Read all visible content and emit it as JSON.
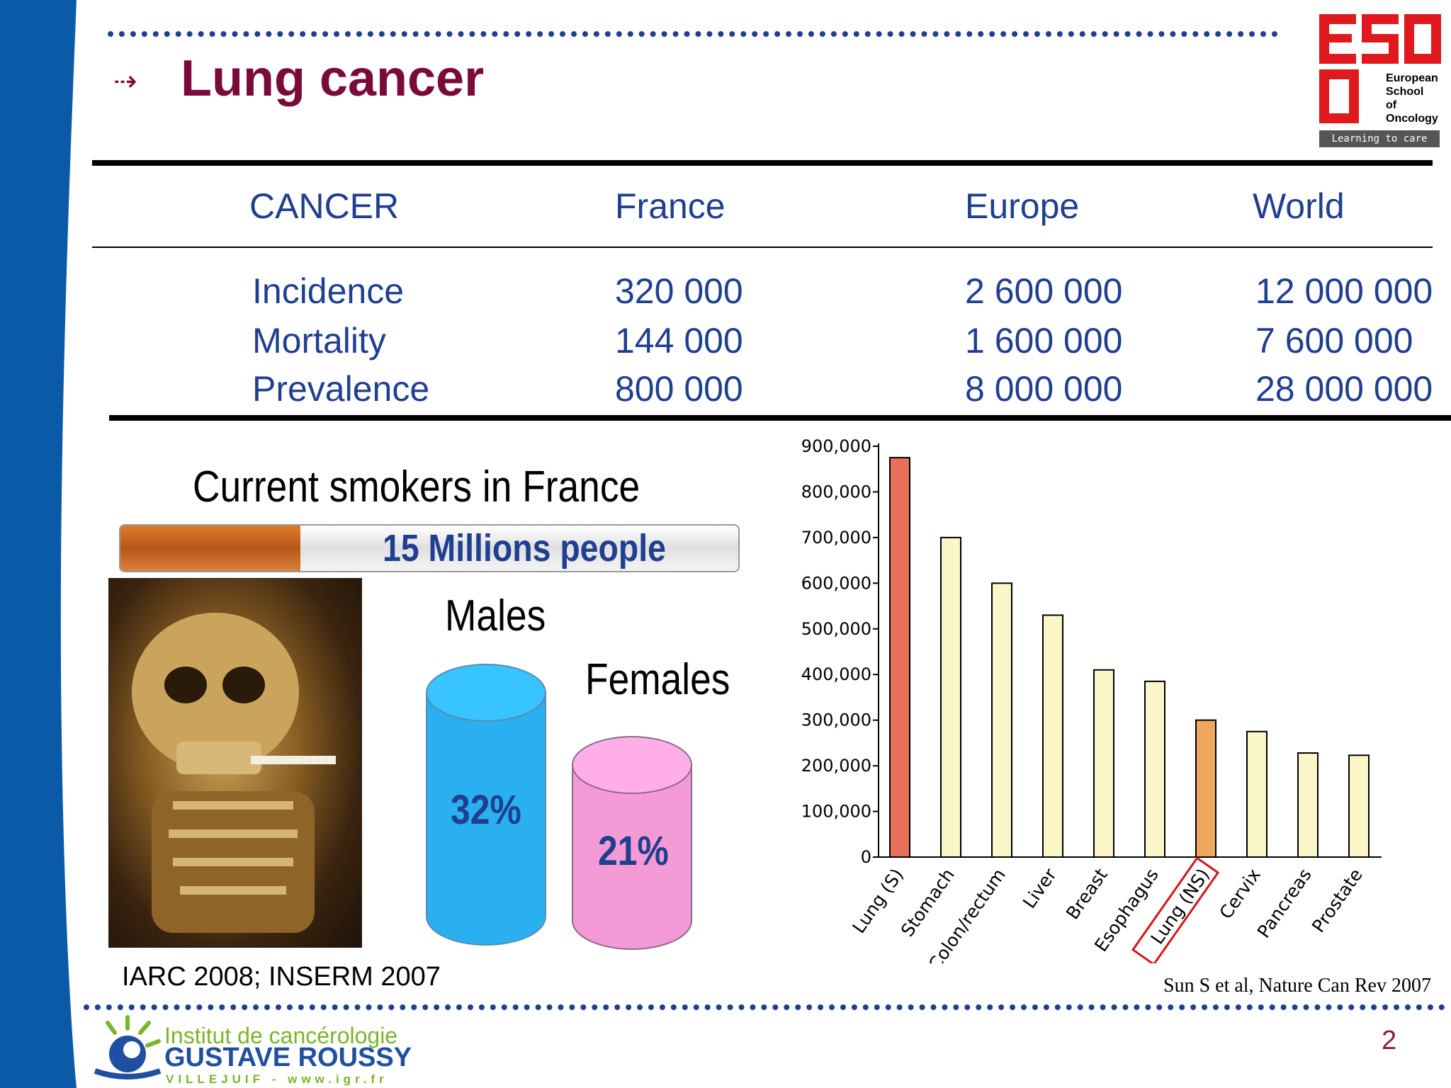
{
  "slide": {
    "title": "Lung cancer",
    "page_number": "2",
    "colors": {
      "accent": "#1f3f8f",
      "title": "#7a0a3a",
      "sidebar": "#0b5aa8"
    }
  },
  "logo_eso": {
    "line1": "European",
    "line2": "School",
    "line3": "of",
    "line4": "Oncology",
    "tagline": "Learning to care"
  },
  "table": {
    "headers": [
      "CANCER",
      "France",
      "Europe",
      "World"
    ],
    "rows": [
      [
        "Incidence",
        "320 000",
        "2 600 000",
        "12 000 000"
      ],
      [
        "Mortality",
        "144 000",
        "1 600 000",
        "7 600 000"
      ],
      [
        "Prevalence",
        "800 000",
        "8 000 000",
        "28 000 000"
      ]
    ]
  },
  "smokers": {
    "title": "Current smokers in France",
    "cigarette_label": "15 Millions people",
    "males_label": "Males",
    "females_label": "Females",
    "males_pct": "32%",
    "females_pct": "21%",
    "citation": "IARC 2008; INSERM 2007"
  },
  "chart_data": {
    "type": "bar",
    "categories": [
      "Lung (S)",
      "Stomach",
      "Colon/rectum",
      "Liver",
      "Breast",
      "Esophagus",
      "Lung (NS)",
      "Cervix",
      "Pancreas",
      "Prostate"
    ],
    "values": [
      875000,
      700000,
      600000,
      530000,
      410000,
      385000,
      300000,
      275000,
      228000,
      223000
    ],
    "ylim": [
      0,
      900000
    ],
    "yticks": [
      "0",
      "100,000",
      "200,000",
      "300,000",
      "400,000",
      "500,000",
      "600,000",
      "700,000",
      "800,000",
      "900,000"
    ],
    "highlighted_category": "Lung (NS)",
    "colors": {
      "lung_s": "#e8705a",
      "lung_ns": "#f0a860",
      "other": "#fbf6c8"
    },
    "citation": "Sun S et al, Nature Can Rev 2007"
  },
  "footer": {
    "line1": "Institut de cancérologie",
    "line2": "GUSTAVE ROUSSY",
    "line3": "VILLEJUIF - www.igr.fr"
  }
}
